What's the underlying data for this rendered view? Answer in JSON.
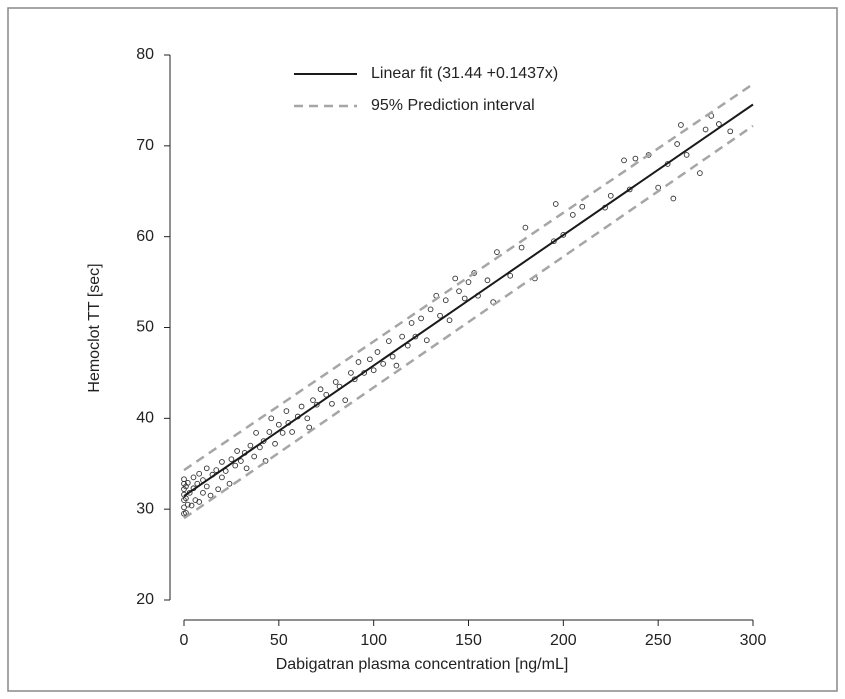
{
  "chart_data": {
    "type": "scatter",
    "x_label": "Dabigatran plasma concentration [ng/mL]",
    "y_label": "Hemoclot TT [sec]",
    "xlim": [
      0,
      300
    ],
    "ylim": [
      20,
      80
    ],
    "xticks": [
      0,
      50,
      100,
      150,
      200,
      250,
      300
    ],
    "yticks": [
      20,
      30,
      40,
      50,
      60,
      70,
      80
    ],
    "series": [
      {
        "color": "#333333",
        "x": [
          0,
          0,
          0,
          0,
          0,
          0,
          0,
          1,
          1,
          1,
          2,
          2,
          3,
          4,
          5,
          5,
          6,
          7,
          8,
          8,
          10,
          10,
          12,
          12,
          14,
          15,
          17,
          18,
          20,
          20,
          22,
          24,
          25,
          27,
          28,
          30,
          32,
          33,
          35,
          37,
          38,
          40,
          42,
          43,
          45,
          46,
          48,
          50,
          52,
          54,
          55,
          57,
          60,
          62,
          65,
          66,
          68,
          70,
          72,
          75,
          78,
          80,
          82,
          85,
          88,
          90,
          92,
          95,
          98,
          100,
          102,
          105,
          108,
          110,
          112,
          115,
          118,
          120,
          122,
          125,
          128,
          130,
          133,
          135,
          138,
          140,
          143,
          145,
          148,
          150,
          153,
          155,
          160,
          163,
          165,
          172,
          178,
          180,
          185,
          195,
          196,
          200,
          205,
          210,
          222,
          225,
          232,
          235,
          238,
          245,
          250,
          255,
          258,
          260,
          262,
          265,
          272,
          275,
          278,
          282,
          288
        ],
        "values": [
          29.5,
          30.2,
          31,
          31.6,
          32.2,
          32.8,
          33.3,
          29.6,
          31.2,
          32.5,
          30.5,
          32.9,
          31.8,
          30.4,
          32.3,
          33.5,
          31,
          32.8,
          30.8,
          33.9,
          31.8,
          33.2,
          32.5,
          34.5,
          31.5,
          33.8,
          34.3,
          32.2,
          33.5,
          35.2,
          34.2,
          32.8,
          35.5,
          34.8,
          36.4,
          35.3,
          36.2,
          34.5,
          37,
          35.8,
          38.4,
          36.8,
          37.5,
          35.3,
          38.5,
          40,
          37.2,
          39.3,
          38.4,
          40.8,
          39.5,
          38.5,
          40.2,
          41.3,
          40,
          39,
          42,
          41.5,
          43.2,
          42.6,
          41.6,
          44,
          43.5,
          42,
          45,
          44.3,
          46.2,
          45,
          46.5,
          45.3,
          47.3,
          46,
          48.5,
          46.8,
          45.8,
          49,
          48,
          50.5,
          49,
          51,
          48.6,
          52,
          53.5,
          51.3,
          53,
          50.8,
          55.4,
          54,
          53.2,
          55,
          56,
          53.5,
          55.2,
          52.8,
          58.3,
          55.7,
          58.8,
          61,
          55.4,
          59.5,
          63.6,
          60.2,
          62.4,
          63.3,
          63.2,
          64.5,
          68.4,
          65.2,
          68.6,
          69,
          65.4,
          68,
          64.2,
          70.2,
          72.3,
          69,
          67,
          71.8,
          73.3,
          72.4,
          71.6
        ]
      },
      {
        "name": "Linear fit (31.44  +0.1437x)",
        "kind": "line",
        "color": "#1a1a1a",
        "dash": false,
        "x": [
          0,
          300
        ],
        "values": [
          31.44,
          74.55
        ]
      },
      {
        "name": "95% Prediction interval",
        "kind": "line",
        "color": "#a6a6a6",
        "dash": true,
        "x": [
          0,
          300
        ],
        "values": [
          34.3,
          76.8
        ]
      },
      {
        "kind": "line",
        "color": "#a6a6a6",
        "dash": true,
        "x": [
          0,
          300
        ],
        "values": [
          29.0,
          72.2
        ]
      }
    ]
  }
}
